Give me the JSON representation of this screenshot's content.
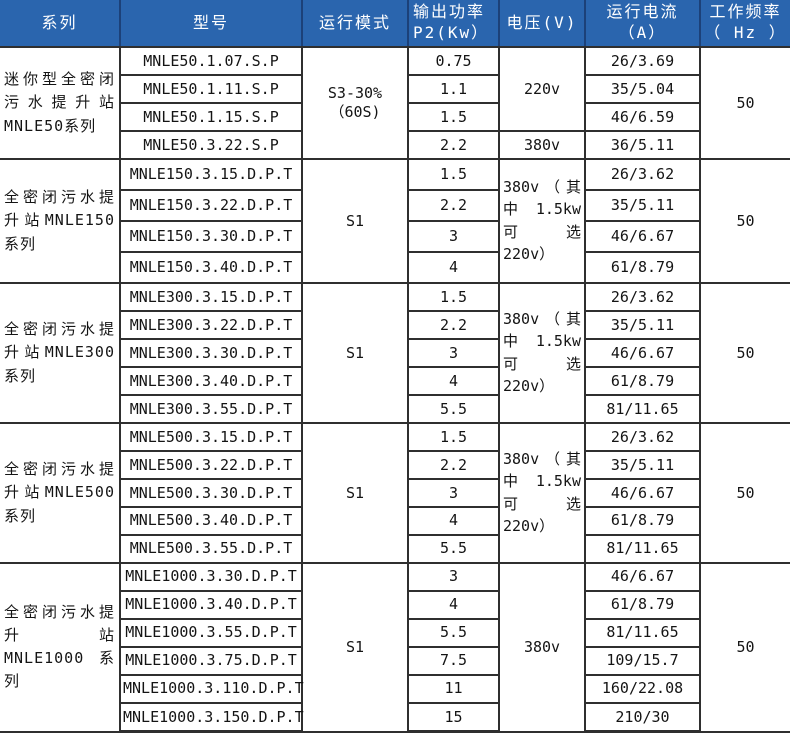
{
  "table": {
    "colors": {
      "header_bg": "#2a65ae",
      "header_text": "#ffffff",
      "header_divider": "#1c4179",
      "body_border": "#2f2f2f",
      "body_text": "#141414"
    },
    "columns": [
      {
        "label": "系列"
      },
      {
        "label": "型号"
      },
      {
        "label": "运行模式"
      },
      {
        "label": "输出功率\nP2(Kw）"
      },
      {
        "label": "电压(V)"
      },
      {
        "label": "运行电流（A）"
      },
      {
        "label": "工作频率\n（ Hz ）"
      }
    ],
    "sections": [
      {
        "series": "迷你型全密闭污水提升站MNLE50系列",
        "mode": "S3-30% （60S)",
        "frequency": "50",
        "voltage_groups": [
          {
            "text": "220v",
            "span": 3,
            "align": "center"
          },
          {
            "text": "380v",
            "span": 1,
            "align": "center"
          }
        ],
        "rows": [
          {
            "model": "MNLE50.1.07.S.P",
            "power": "0.75",
            "current": "26/3.69"
          },
          {
            "model": "MNLE50.1.11.S.P",
            "power": "1.1",
            "current": "35/5.04"
          },
          {
            "model": "MNLE50.1.15.S.P",
            "power": "1.5",
            "current": "46/6.59"
          },
          {
            "model": "MNLE50.3.22.S.P",
            "power": "2.2",
            "current": "36/5.11"
          }
        ]
      },
      {
        "series": "全密闭污水提升站MNLE150系列",
        "mode": "S1",
        "frequency": "50",
        "voltage_groups": [
          {
            "text": "380v（其中 1.5kw 可选 220v）",
            "span": 4,
            "align": "left"
          }
        ],
        "rows": [
          {
            "model": "MNLE150.3.15.D.P.T",
            "power": "1.5",
            "current": "26/3.62"
          },
          {
            "model": "MNLE150.3.22.D.P.T",
            "power": "2.2",
            "current": "35/5.11"
          },
          {
            "model": "MNLE150.3.30.D.P.T",
            "power": "3",
            "current": "46/6.67"
          },
          {
            "model": "MNLE150.3.40.D.P.T",
            "power": "4",
            "current": "61/8.79"
          }
        ]
      },
      {
        "series": "全密闭污水提升站MNLE300系列",
        "mode": "S1",
        "frequency": "50",
        "voltage_groups": [
          {
            "text": "380v（其中 1.5kw 可选 220v）",
            "span": 5,
            "align": "left"
          }
        ],
        "rows": [
          {
            "model": "MNLE300.3.15.D.P.T",
            "power": "1.5",
            "current": "26/3.62"
          },
          {
            "model": "MNLE300.3.22.D.P.T",
            "power": "2.2",
            "current": "35/5.11"
          },
          {
            "model": "MNLE300.3.30.D.P.T",
            "power": "3",
            "current": "46/6.67"
          },
          {
            "model": "MNLE300.3.40.D.P.T",
            "power": "4",
            "current": "61/8.79"
          },
          {
            "model": "MNLE300.3.55.D.P.T",
            "power": "5.5",
            "current": "81/11.65"
          }
        ]
      },
      {
        "series": "全密闭污水提升站MNLE500系列",
        "mode": "S1",
        "frequency": "50",
        "voltage_groups": [
          {
            "text": "380v（其中 1.5kw 可选 220v）",
            "span": 5,
            "align": "left"
          }
        ],
        "rows": [
          {
            "model": "MNLE500.3.15.D.P.T",
            "power": "1.5",
            "current": "26/3.62"
          },
          {
            "model": "MNLE500.3.22.D.P.T",
            "power": "2.2",
            "current": "35/5.11"
          },
          {
            "model": "MNLE500.3.30.D.P.T",
            "power": "3",
            "current": "46/6.67"
          },
          {
            "model": "MNLE500.3.40.D.P.T",
            "power": "4",
            "current": "61/8.79"
          },
          {
            "model": "MNLE500.3.55.D.P.T",
            "power": "5.5",
            "current": "81/11.65"
          }
        ]
      },
      {
        "series": "全密闭污水提升站MNLE1000系列",
        "mode": "S1",
        "frequency": "50",
        "voltage_groups": [
          {
            "text": "380v",
            "span": 6,
            "align": "center"
          }
        ],
        "rows": [
          {
            "model": "MNLE1000.3.30.D.P.T",
            "power": "3",
            "current": "46/6.67"
          },
          {
            "model": "MNLE1000.3.40.D.P.T",
            "power": "4",
            "current": "61/8.79"
          },
          {
            "model": "MNLE1000.3.55.D.P.T",
            "power": "5.5",
            "current": "81/11.65"
          },
          {
            "model": "MNLE1000.3.75.D.P.T",
            "power": "7.5",
            "current": "109/15.7"
          },
          {
            "model": "MNLE1000.3.110.D.P.T",
            "power": "11",
            "current": "160/22.08"
          },
          {
            "model": "MNLE1000.3.150.D.P.T",
            "power": "15",
            "current": "210/30"
          }
        ]
      }
    ]
  }
}
